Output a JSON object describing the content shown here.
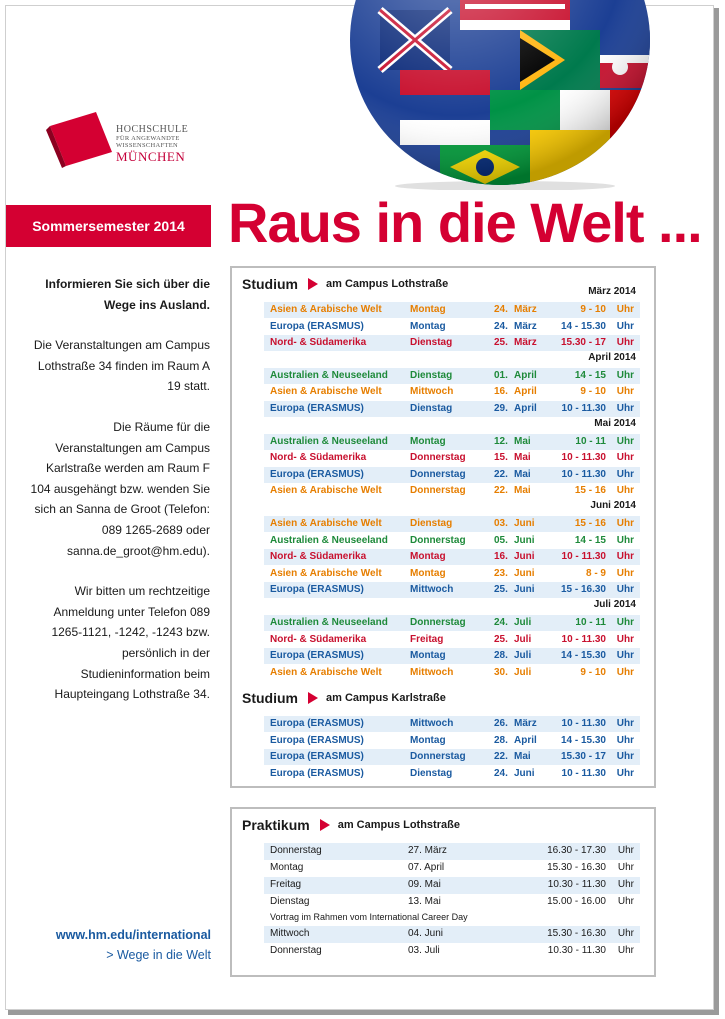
{
  "logo": {
    "line1": "HOCHSCHULE",
    "line2": "FÜR ANGEWANDTE",
    "line3": "WISSENSCHAFTEN",
    "line4": "MÜNCHEN"
  },
  "header": {
    "semester": "Sommersemester 2014",
    "headline": "Raus in die Welt ..."
  },
  "info": {
    "p1": "Informieren Sie sich über die Wege ins Ausland.",
    "p2": "Die Veranstaltungen am Campus Lothstraße 34 finden im Raum A 19 statt.",
    "p3": "Die Räume für die Veranstaltungen am Campus Karlstraße werden am Raum F 104 ausgehängt bzw. wenden Sie sich an Sanna de Groot (Telefon: 089 1265-2689 oder sanna.de_groot@hm.edu).",
    "p4": "Wir bitten um rechtzeitige Anmeldung unter Telefon 089 1265-1121, -1242, -1243 bzw. persönlich in der Studieninformation beim Haupteingang Lothstraße 34."
  },
  "footer": {
    "url": "www.hm.edu/international",
    "link": "> Wege in die Welt"
  },
  "colors": {
    "red": "#d40032",
    "orange": "#e67e00",
    "blue": "#1a5aa0",
    "green": "#1e8a3a",
    "red_text": "#c8102e",
    "row_alt": "#e3eef8"
  },
  "studium_lothstr": {
    "title": "Studium",
    "subtitle": "am Campus Lothstraße",
    "months": [
      {
        "label": "März 2014",
        "rows": [
          {
            "region": "Asien & Arabische Welt",
            "day": "Montag",
            "dnum": "24.",
            "mon": "März",
            "time": "9 - 10",
            "uhr": "Uhr",
            "color": "orange"
          },
          {
            "region": "Europa (ERASMUS)",
            "day": "Montag",
            "dnum": "24.",
            "mon": "März",
            "time": "14 - 15.30",
            "uhr": "Uhr",
            "color": "blue"
          },
          {
            "region": "Nord- & Südamerika",
            "day": "Dienstag",
            "dnum": "25.",
            "mon": "März",
            "time": "15.30 - 17",
            "uhr": "Uhr",
            "color": "red"
          }
        ]
      },
      {
        "label": "April 2014",
        "rows": [
          {
            "region": "Australien & Neuseeland",
            "day": "Dienstag",
            "dnum": "01.",
            "mon": "April",
            "time": "14 - 15",
            "uhr": "Uhr",
            "color": "green"
          },
          {
            "region": "Asien & Arabische Welt",
            "day": "Mittwoch",
            "dnum": "16.",
            "mon": "April",
            "time": "9 - 10",
            "uhr": "Uhr",
            "color": "orange"
          },
          {
            "region": "Europa (ERASMUS)",
            "day": "Dienstag",
            "dnum": "29.",
            "mon": "April",
            "time": "10 - 11.30",
            "uhr": "Uhr",
            "color": "blue"
          }
        ]
      },
      {
        "label": "Mai 2014",
        "rows": [
          {
            "region": "Australien & Neuseeland",
            "day": "Montag",
            "dnum": "12.",
            "mon": "Mai",
            "time": "10 - 11",
            "uhr": "Uhr",
            "color": "green"
          },
          {
            "region": "Nord- & Südamerika",
            "day": "Donnerstag",
            "dnum": "15.",
            "mon": "Mai",
            "time": "10 - 11.30",
            "uhr": "Uhr",
            "color": "red"
          },
          {
            "region": "Europa (ERASMUS)",
            "day": "Donnerstag",
            "dnum": "22.",
            "mon": "Mai",
            "time": "10 - 11.30",
            "uhr": "Uhr",
            "color": "blue"
          },
          {
            "region": "Asien & Arabische Welt",
            "day": "Donnerstag",
            "dnum": "22.",
            "mon": "Mai",
            "time": "15 - 16",
            "uhr": "Uhr",
            "color": "orange"
          }
        ]
      },
      {
        "label": "Juni 2014",
        "rows": [
          {
            "region": "Asien & Arabische Welt",
            "day": "Dienstag",
            "dnum": "03.",
            "mon": "Juni",
            "time": "15 - 16",
            "uhr": "Uhr",
            "color": "orange"
          },
          {
            "region": "Australien & Neuseeland",
            "day": "Donnerstag",
            "dnum": "05.",
            "mon": "Juni",
            "time": "14 - 15",
            "uhr": "Uhr",
            "color": "green"
          },
          {
            "region": "Nord- & Südamerika",
            "day": "Montag",
            "dnum": "16.",
            "mon": "Juni",
            "time": "10 - 11.30",
            "uhr": "Uhr",
            "color": "red"
          },
          {
            "region": "Asien & Arabische Welt",
            "day": "Montag",
            "dnum": "23.",
            "mon": "Juni",
            "time": "8 - 9",
            "uhr": "Uhr",
            "color": "orange"
          },
          {
            "region": "Europa (ERASMUS)",
            "day": "Mittwoch",
            "dnum": "25.",
            "mon": "Juni",
            "time": "15 - 16.30",
            "uhr": "Uhr",
            "color": "blue"
          }
        ]
      },
      {
        "label": "Juli 2014",
        "rows": [
          {
            "region": "Australien & Neuseeland",
            "day": "Donnerstag",
            "dnum": "24.",
            "mon": "Juli",
            "time": "10 - 11",
            "uhr": "Uhr",
            "color": "green"
          },
          {
            "region": "Nord- & Südamerika",
            "day": "Freitag",
            "dnum": "25.",
            "mon": "Juli",
            "time": "10 - 11.30",
            "uhr": "Uhr",
            "color": "red"
          },
          {
            "region": "Europa (ERASMUS)",
            "day": "Montag",
            "dnum": "28.",
            "mon": "Juli",
            "time": "14 - 15.30",
            "uhr": "Uhr",
            "color": "blue"
          },
          {
            "region": "Asien & Arabische Welt",
            "day": "Mittwoch",
            "dnum": "30.",
            "mon": "Juli",
            "time": "9 - 10",
            "uhr": "Uhr",
            "color": "orange"
          }
        ]
      }
    ]
  },
  "studium_karlstr": {
    "title": "Studium",
    "subtitle": "am Campus Karlstraße",
    "rows": [
      {
        "region": "Europa (ERASMUS)",
        "day": "Mittwoch",
        "dnum": "26.",
        "mon": "März",
        "time": "10 - 11.30",
        "uhr": "Uhr",
        "color": "blue"
      },
      {
        "region": "Europa (ERASMUS)",
        "day": "Montag",
        "dnum": "28.",
        "mon": "April",
        "time": "14 - 15.30",
        "uhr": "Uhr",
        "color": "blue"
      },
      {
        "region": "Europa (ERASMUS)",
        "day": "Donnerstag",
        "dnum": "22.",
        "mon": "Mai",
        "time": "15.30 - 17",
        "uhr": "Uhr",
        "color": "blue"
      },
      {
        "region": "Europa (ERASMUS)",
        "day": "Dienstag",
        "dnum": "24.",
        "mon": "Juni",
        "time": "10 - 11.30",
        "uhr": "Uhr",
        "color": "blue"
      }
    ]
  },
  "praktikum": {
    "title": "Praktikum",
    "subtitle": "am Campus Lothstraße",
    "rows": [
      {
        "day": "Donnerstag",
        "date": "27. März",
        "time": "16.30 - 17.30",
        "uhr": "Uhr"
      },
      {
        "day": "Montag",
        "date": "07. April",
        "time": "15.30 - 16.30",
        "uhr": "Uhr"
      },
      {
        "day": "Freitag",
        "date": "09. Mai",
        "time": "10.30 - 11.30",
        "uhr": "Uhr"
      },
      {
        "day": "Dienstag",
        "date": "13. Mai",
        "time": "15.00 - 16.00",
        "uhr": "Uhr",
        "note": "Vortrag im Rahmen vom International Career Day"
      },
      {
        "day": "Mittwoch",
        "date": "04. Juni",
        "time": "15.30 - 16.30",
        "uhr": "Uhr"
      },
      {
        "day": "Donnerstag",
        "date": "03. Juli",
        "time": "10.30 - 11.30",
        "uhr": "Uhr"
      }
    ]
  }
}
